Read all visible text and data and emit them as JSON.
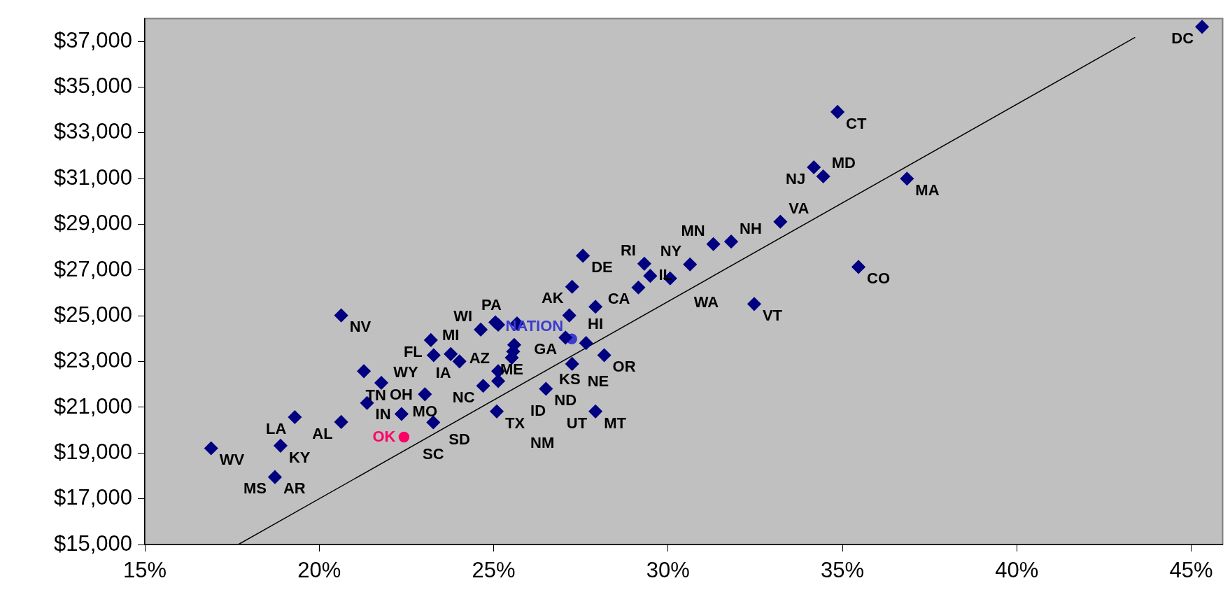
{
  "chart_data": {
    "type": "scatter",
    "xlim": [
      15,
      45.9
    ],
    "xticks": [
      {
        "value": 15,
        "label": "15%"
      },
      {
        "value": 20,
        "label": "20%"
      },
      {
        "value": 25,
        "label": "25%"
      },
      {
        "value": 30,
        "label": "30%"
      },
      {
        "value": 35,
        "label": "35%"
      },
      {
        "value": 40,
        "label": "40%"
      },
      {
        "value": 45,
        "label": "45%"
      }
    ],
    "ylim": [
      15000,
      38000
    ],
    "yticks": [
      {
        "value": 15000,
        "label": "$15,000"
      },
      {
        "value": 17000,
        "label": "$17,000"
      },
      {
        "value": 19000,
        "label": "$19,000"
      },
      {
        "value": 21000,
        "label": "$21,000"
      },
      {
        "value": 23000,
        "label": "$23,000"
      },
      {
        "value": 25000,
        "label": "$25,000"
      },
      {
        "value": 27000,
        "label": "$27,000"
      },
      {
        "value": 29000,
        "label": "$29,000"
      },
      {
        "value": 31000,
        "label": "$31,000"
      },
      {
        "value": 33000,
        "label": "$33,000"
      },
      {
        "value": 35000,
        "label": "$35,000"
      },
      {
        "value": 37000,
        "label": "$37,000"
      }
    ],
    "grid": false,
    "legend": false,
    "series": [
      {
        "marker": "diamond",
        "color": "#000080",
        "x": [
          45.31,
          34.86,
          34.18,
          34.45,
          36.85,
          33.22,
          31.3,
          31.81,
          35.46,
          32.47,
          27.56,
          29.32,
          29.49,
          30.06,
          30.63,
          29.15,
          27.25,
          27.92,
          27.17,
          25.05,
          25.13,
          25.67,
          24.63,
          23.2,
          27.06,
          27.65,
          25.59,
          25.56,
          25.52,
          23.28,
          23.77,
          24.02,
          28.17,
          27.25,
          25.13,
          25.13,
          24.7,
          26.5,
          23.03,
          22.36,
          25.09,
          27.92,
          23.27,
          20.63,
          21.28,
          21.78,
          21.37,
          19.3,
          20.63,
          18.89,
          16.9,
          18.73
        ],
        "values": [
          37640,
          33920,
          31500,
          31100,
          31000,
          29120,
          28140,
          28250,
          27140,
          25520,
          27630,
          27280,
          26750,
          26640,
          27250,
          26240,
          26270,
          25400,
          25020,
          24720,
          24610,
          24670,
          24400,
          23940,
          24050,
          23810,
          23730,
          23440,
          23170,
          23280,
          23330,
          23010,
          23280,
          22900,
          22580,
          22150,
          21940,
          21810,
          21570,
          20710,
          20820,
          20820,
          20340,
          25020,
          22580,
          22070,
          21190,
          20570,
          20360,
          19320,
          19210,
          17950
        ]
      },
      {
        "marker": "circle",
        "name": "NATION",
        "color": "#3b3bd0",
        "x": [
          27.24
        ],
        "values": [
          23990
        ]
      },
      {
        "marker": "circle",
        "name": "OK",
        "color": "#ff0066",
        "x": [
          22.43
        ],
        "values": [
          19700
        ]
      },
      {
        "type": "line",
        "marker": "none",
        "line_style": "solid",
        "color": "#000000",
        "x": [
          17.68,
          43.38
        ],
        "values": [
          15000,
          37170
        ]
      }
    ],
    "annotations": [
      {
        "text": "DC",
        "x": 45.31,
        "y": 37640
      },
      {
        "text": "CT",
        "x": 34.86,
        "y": 33920
      },
      {
        "text": "NJ",
        "x": 34.18,
        "y": 31500
      },
      {
        "text": "MD",
        "x": 34.45,
        "y": 31100
      },
      {
        "text": "MA",
        "x": 36.85,
        "y": 31000
      },
      {
        "text": "VA",
        "x": 33.22,
        "y": 29120
      },
      {
        "text": "NH",
        "x": 31.81,
        "y": 28250
      },
      {
        "text": "NY",
        "x": 30.63,
        "y": 27250
      },
      {
        "text": "MN",
        "x": 31.3,
        "y": 28140
      },
      {
        "text": "RI",
        "x": 29.32,
        "y": 27280
      },
      {
        "text": "CA",
        "x": 29.15,
        "y": 26240
      },
      {
        "text": "DE",
        "x": 27.56,
        "y": 27630
      },
      {
        "text": "AK",
        "x": 27.25,
        "y": 26270
      },
      {
        "text": "HI",
        "x": 27.92,
        "y": 25400
      },
      {
        "text": "IL",
        "x": 29.49,
        "y": 26750
      },
      {
        "text": "WA",
        "x": 30.06,
        "y": 26640
      },
      {
        "text": "VT",
        "x": 32.47,
        "y": 25520
      },
      {
        "text": "CO",
        "x": 35.46,
        "y": 27140
      },
      {
        "text": "PA",
        "x": 25.67,
        "y": 24670
      },
      {
        "text": "WI",
        "x": 24.63,
        "y": 24400
      },
      {
        "text": "FL",
        "x": 23.2,
        "y": 23940
      },
      {
        "text": "WY",
        "x": 23.28,
        "y": 23280
      },
      {
        "text": "MI",
        "x": 23.77,
        "y": 23330
      },
      {
        "text": "IA",
        "x": 24.02,
        "y": 23010
      },
      {
        "text": "GA",
        "x": 27.06,
        "y": 24050
      },
      {
        "text": "OR",
        "x": 28.17,
        "y": 23280
      },
      {
        "text": "AZ",
        "x": 25.13,
        "y": 22580
      },
      {
        "text": "ME",
        "x": 25.52,
        "y": 23170
      },
      {
        "text": "NC",
        "x": 24.7,
        "y": 21940
      },
      {
        "text": "OH",
        "x": 21.78,
        "y": 22070
      },
      {
        "text": "KS",
        "x": 28.17,
        "y": 23280
      },
      {
        "text": "IN",
        "x": 21.37,
        "y": 21190
      },
      {
        "text": "MO",
        "x": 23.03,
        "y": 21570
      },
      {
        "text": "ND",
        "x": 26.5,
        "y": 21810
      },
      {
        "text": "NE",
        "x": 27.25,
        "y": 22900
      },
      {
        "text": "TN",
        "x": 22.36,
        "y": 20710
      },
      {
        "text": "SD",
        "x": 23.27,
        "y": 20340
      },
      {
        "text": "TX",
        "x": 25.09,
        "y": 20820
      },
      {
        "text": "AL",
        "x": 20.63,
        "y": 20360
      },
      {
        "text": "SC",
        "x": 23.27,
        "y": 20340
      },
      {
        "text": "MT",
        "x": 27.92,
        "y": 20820
      },
      {
        "text": "UT",
        "x": 27.92,
        "y": 20820
      },
      {
        "text": "KY",
        "x": 18.89,
        "y": 19320
      },
      {
        "text": "NM",
        "x": 25.09,
        "y": 20820
      },
      {
        "text": "LA",
        "x": 19.3,
        "y": 20570
      },
      {
        "text": "ID",
        "x": 25.09,
        "y": 20820
      },
      {
        "text": "AR",
        "x": 18.73,
        "y": 17950
      },
      {
        "text": "WV",
        "x": 16.9,
        "y": 19210
      },
      {
        "text": "NV",
        "x": 20.63,
        "y": 25020
      },
      {
        "text": "MS",
        "x": 18.73,
        "y": 17950
      }
    ]
  }
}
